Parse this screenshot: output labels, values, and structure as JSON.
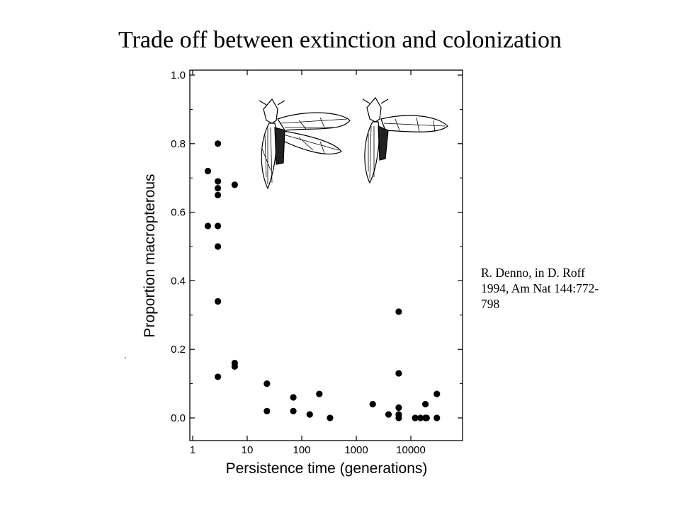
{
  "slide": {
    "title": "Trade off between extinction and colonization",
    "citation_lines": [
      "R. Denno, in D. Roff",
      "1994, Am Nat  144:772-",
      "798"
    ]
  },
  "chart_data": {
    "type": "scatter",
    "xlabel": "Persistence time (generations)",
    "ylabel": "Proportion macropterous",
    "x_scale": "log",
    "xlim": [
      1,
      100000
    ],
    "ylim": [
      0,
      1.0
    ],
    "x_ticks": [
      1,
      10,
      100,
      1000,
      10000
    ],
    "x_tick_labels": [
      "1",
      "10",
      "100",
      "1000",
      "10000"
    ],
    "y_ticks": [
      0.0,
      0.2,
      0.4,
      0.6,
      0.8,
      1.0
    ],
    "y_tick_labels": [
      "0.0",
      "0.2",
      "0.4",
      "0.6",
      "0.8",
      "1.0"
    ],
    "grid": false,
    "marker_color": "#000000",
    "points": [
      {
        "x": 1.9,
        "y": 0.72
      },
      {
        "x": 1.9,
        "y": 0.56
      },
      {
        "x": 2.9,
        "y": 0.8
      },
      {
        "x": 2.9,
        "y": 0.69
      },
      {
        "x": 2.9,
        "y": 0.67
      },
      {
        "x": 2.9,
        "y": 0.65
      },
      {
        "x": 2.9,
        "y": 0.56
      },
      {
        "x": 2.9,
        "y": 0.5
      },
      {
        "x": 2.9,
        "y": 0.34
      },
      {
        "x": 2.9,
        "y": 0.12
      },
      {
        "x": 5.9,
        "y": 0.68
      },
      {
        "x": 5.9,
        "y": 0.16
      },
      {
        "x": 5.9,
        "y": 0.15
      },
      {
        "x": 23,
        "y": 0.1
      },
      {
        "x": 23,
        "y": 0.02
      },
      {
        "x": 70,
        "y": 0.06
      },
      {
        "x": 70,
        "y": 0.02
      },
      {
        "x": 140,
        "y": 0.01
      },
      {
        "x": 210,
        "y": 0.07
      },
      {
        "x": 330,
        "y": 0.0
      },
      {
        "x": 2000,
        "y": 0.04
      },
      {
        "x": 3900,
        "y": 0.01
      },
      {
        "x": 6000,
        "y": 0.31
      },
      {
        "x": 6000,
        "y": 0.13
      },
      {
        "x": 6000,
        "y": 0.03
      },
      {
        "x": 6000,
        "y": 0.01
      },
      {
        "x": 6000,
        "y": 0.0
      },
      {
        "x": 12000,
        "y": 0.0
      },
      {
        "x": 15000,
        "y": 0.0
      },
      {
        "x": 18500,
        "y": 0.0
      },
      {
        "x": 18500,
        "y": 0.04
      },
      {
        "x": 19500,
        "y": 0.0
      },
      {
        "x": 30000,
        "y": 0.07
      },
      {
        "x": 30000,
        "y": 0.0
      }
    ],
    "images": [
      {
        "name": "wing-insect-long-wing-icon"
      },
      {
        "name": "wing-insect-short-wing-icon"
      }
    ]
  }
}
